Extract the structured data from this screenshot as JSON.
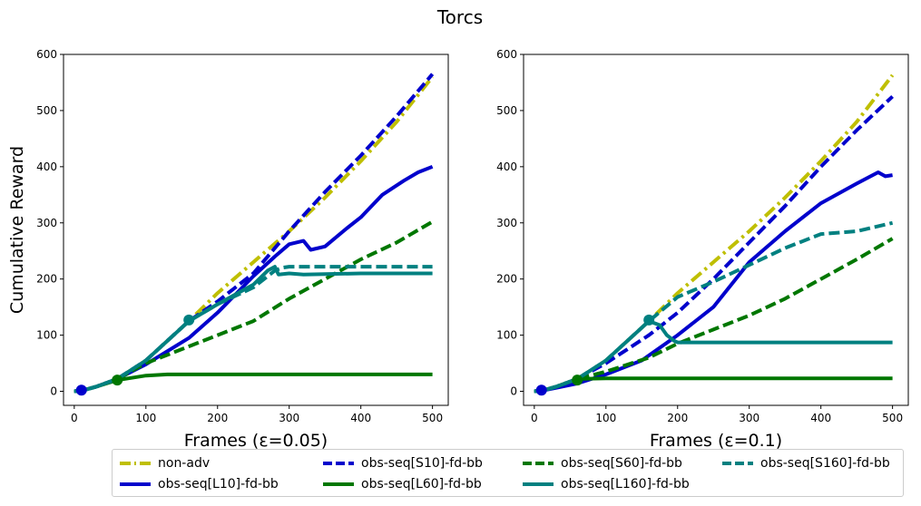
{
  "title": "Torcs",
  "chart_data": [
    {
      "type": "line",
      "xlabel": "Frames (ε=0.05)",
      "ylabel": "Cumulative Reward",
      "xlim": [
        -15,
        522
      ],
      "ylim": [
        -25,
        600
      ],
      "xticks": [
        0,
        100,
        200,
        300,
        400,
        500
      ],
      "yticks": [
        0,
        100,
        200,
        300,
        400,
        500,
        600
      ],
      "series": [
        {
          "name": "non-adv",
          "color": "#bfbf00",
          "dash": "dashdot",
          "x": [
            0,
            10,
            30,
            60,
            100,
            160,
            200,
            250,
            300,
            350,
            400,
            450,
            500
          ],
          "y": [
            0,
            1,
            8,
            22,
            55,
            125,
            175,
            230,
            285,
            345,
            410,
            480,
            560
          ]
        },
        {
          "name": "obs-seq[S10]-fd-bb",
          "color": "#0000cc",
          "dash": "dashed",
          "x": [
            0,
            10,
            30,
            60,
            100,
            160,
            200,
            250,
            300,
            350,
            400,
            450,
            500
          ],
          "y": [
            0,
            1,
            8,
            22,
            55,
            125,
            160,
            210,
            285,
            355,
            420,
            490,
            565
          ]
        },
        {
          "name": "obs-seq[L10]-fd-bb",
          "color": "#0000cc",
          "dash": "solid",
          "x": [
            0,
            10,
            30,
            60,
            100,
            160,
            200,
            250,
            280,
            300,
            320,
            330,
            350,
            380,
            400,
            430,
            460,
            480,
            500
          ],
          "y": [
            0,
            1,
            8,
            22,
            48,
            95,
            140,
            205,
            240,
            262,
            268,
            252,
            258,
            290,
            310,
            350,
            375,
            390,
            400
          ]
        },
        {
          "name": "obs-seq[S60]-fd-bb",
          "color": "#007700",
          "dash": "dashed",
          "x": [
            0,
            10,
            30,
            60,
            100,
            160,
            200,
            250,
            300,
            350,
            400,
            450,
            500
          ],
          "y": [
            0,
            1,
            8,
            22,
            50,
            80,
            100,
            125,
            165,
            200,
            235,
            265,
            302
          ]
        },
        {
          "name": "obs-seq[L60]-fd-bb",
          "color": "#007700",
          "dash": "solid",
          "x": [
            0,
            10,
            30,
            60,
            80,
            100,
            130,
            200,
            300,
            400,
            500
          ],
          "y": [
            0,
            1,
            8,
            20,
            24,
            28,
            30,
            30,
            30,
            30,
            30
          ]
        },
        {
          "name": "obs-seq[S160]-fd-bb",
          "color": "#008080",
          "dash": "dashed",
          "x": [
            0,
            10,
            30,
            60,
            100,
            160,
            200,
            250,
            270,
            280,
            290,
            300,
            350,
            400,
            500
          ],
          "y": [
            0,
            1,
            8,
            22,
            55,
            125,
            155,
            185,
            205,
            215,
            220,
            222,
            222,
            222,
            222
          ]
        },
        {
          "name": "obs-seq[L160]-fd-bb",
          "color": "#008080",
          "dash": "solid",
          "x": [
            0,
            10,
            30,
            60,
            100,
            160,
            200,
            250,
            270,
            280,
            285,
            300,
            320,
            400,
            500
          ],
          "y": [
            0,
            1,
            8,
            22,
            55,
            125,
            155,
            190,
            215,
            222,
            208,
            210,
            208,
            210,
            210
          ]
        }
      ],
      "markers": [
        {
          "x": 10,
          "y": 2,
          "color": "#0000cc"
        },
        {
          "x": 60,
          "y": 20,
          "color": "#007700"
        },
        {
          "x": 160,
          "y": 127,
          "color": "#008080"
        }
      ]
    },
    {
      "type": "line",
      "xlabel": "Frames (ε=0.1)",
      "ylabel": "",
      "xlim": [
        -15,
        522
      ],
      "ylim": [
        -25,
        600
      ],
      "xticks": [
        0,
        100,
        200,
        300,
        400,
        500
      ],
      "yticks": [
        0,
        100,
        200,
        300,
        400,
        500,
        600
      ],
      "series": [
        {
          "name": "non-adv",
          "color": "#bfbf00",
          "dash": "dashdot",
          "x": [
            0,
            10,
            30,
            60,
            100,
            160,
            200,
            250,
            300,
            350,
            400,
            450,
            500
          ],
          "y": [
            0,
            1,
            8,
            22,
            55,
            125,
            175,
            230,
            285,
            345,
            410,
            480,
            563
          ]
        },
        {
          "name": "obs-seq[S10]-fd-bb",
          "color": "#0000cc",
          "dash": "dashed",
          "x": [
            0,
            10,
            30,
            60,
            100,
            160,
            200,
            250,
            300,
            350,
            400,
            450,
            500
          ],
          "y": [
            0,
            1,
            8,
            22,
            50,
            100,
            140,
            200,
            265,
            330,
            400,
            465,
            525
          ]
        },
        {
          "name": "obs-seq[L10]-fd-bb",
          "color": "#0000cc",
          "dash": "solid",
          "x": [
            0,
            10,
            30,
            60,
            100,
            150,
            200,
            250,
            300,
            350,
            400,
            450,
            480,
            490,
            500
          ],
          "y": [
            0,
            1,
            6,
            14,
            30,
            55,
            100,
            150,
            230,
            285,
            335,
            370,
            390,
            383,
            385
          ]
        },
        {
          "name": "obs-seq[S60]-fd-bb",
          "color": "#007700",
          "dash": "dashed",
          "x": [
            0,
            10,
            30,
            60,
            100,
            160,
            200,
            250,
            300,
            350,
            400,
            450,
            500
          ],
          "y": [
            0,
            1,
            8,
            22,
            35,
            60,
            85,
            110,
            135,
            165,
            200,
            235,
            272
          ]
        },
        {
          "name": "obs-seq[L60]-fd-bb",
          "color": "#007700",
          "dash": "solid",
          "x": [
            0,
            10,
            30,
            60,
            100,
            200,
            300,
            400,
            500
          ],
          "y": [
            0,
            1,
            8,
            22,
            23,
            23,
            23,
            23,
            23
          ]
        },
        {
          "name": "obs-seq[S160]-fd-bb",
          "color": "#008080",
          "dash": "dashed",
          "x": [
            0,
            10,
            30,
            60,
            100,
            160,
            200,
            250,
            300,
            350,
            400,
            450,
            500
          ],
          "y": [
            0,
            1,
            8,
            22,
            55,
            125,
            168,
            195,
            225,
            255,
            280,
            285,
            300
          ]
        },
        {
          "name": "obs-seq[L160]-fd-bb",
          "color": "#008080",
          "dash": "solid",
          "x": [
            0,
            10,
            30,
            60,
            100,
            160,
            175,
            185,
            195,
            200,
            250,
            300,
            400,
            500
          ],
          "y": [
            0,
            1,
            8,
            22,
            55,
            125,
            118,
            100,
            90,
            87,
            87,
            87,
            87,
            87
          ]
        }
      ],
      "markers": [
        {
          "x": 10,
          "y": 2,
          "color": "#0000cc"
        },
        {
          "x": 60,
          "y": 20,
          "color": "#007700"
        },
        {
          "x": 160,
          "y": 127,
          "color": "#008080"
        }
      ]
    }
  ],
  "legend": [
    {
      "label": "non-adv",
      "color": "#bfbf00",
      "dash": "dashdot"
    },
    {
      "label": "obs-seq[S10]-fd-bb",
      "color": "#0000cc",
      "dash": "dashed"
    },
    {
      "label": "obs-seq[S60]-fd-bb",
      "color": "#007700",
      "dash": "dashed"
    },
    {
      "label": "obs-seq[S160]-fd-bb",
      "color": "#008080",
      "dash": "dashed"
    },
    {
      "label": "obs-seq[L10]-fd-bb",
      "color": "#0000cc",
      "dash": "solid"
    },
    {
      "label": "obs-seq[L60]-fd-bb",
      "color": "#007700",
      "dash": "solid"
    },
    {
      "label": "obs-seq[L160]-fd-bb",
      "color": "#008080",
      "dash": "solid"
    }
  ]
}
